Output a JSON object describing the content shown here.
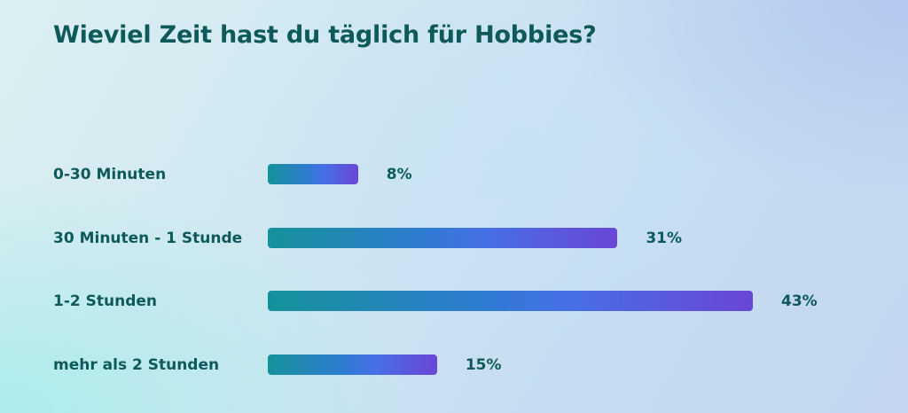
{
  "chart_data": {
    "type": "bar",
    "orientation": "horizontal",
    "title": "Wieviel Zeit hast du täglich für Hobbies?",
    "categories": [
      "0-30 Minuten",
      "30 Minuten - 1 Stunde",
      "1-2 Stunden",
      "mehr als 2 Stunden"
    ],
    "values": [
      8,
      31,
      43,
      15
    ],
    "value_labels": [
      "8%",
      "31%",
      "43%",
      "15%"
    ],
    "unit": "%",
    "xlim": [
      0,
      43
    ],
    "grid": false,
    "legend": "none",
    "colors": {
      "bar_start": "#14929a",
      "bar_mid": "#4670e6",
      "bar_end": "#6a46d6",
      "text": "#0e5a5b"
    }
  }
}
